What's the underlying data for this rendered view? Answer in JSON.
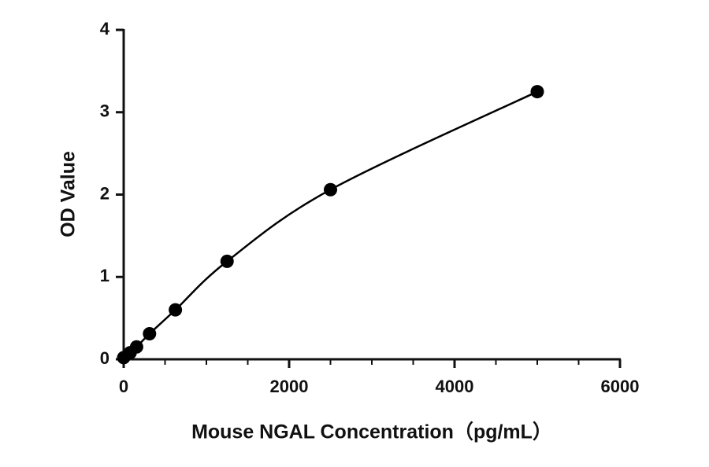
{
  "chart_data": {
    "type": "scatter",
    "x_label": "Mouse NGAL Concentration（pg/mL）",
    "y_label": "OD Value",
    "x": [
      0,
      78,
      156,
      312.5,
      625,
      1250,
      2500,
      5000
    ],
    "series": [
      {
        "color": "#000000",
        "values": [
          0.02,
          0.08,
          0.15,
          0.31,
          0.6,
          1.19,
          2.06,
          3.25
        ]
      }
    ],
    "xlim": [
      0,
      6000
    ],
    "xticks": [
      0,
      2000,
      4000,
      6000
    ],
    "xminorticks": [
      500,
      1000,
      1500,
      2500,
      3000,
      3500,
      4500,
      5000,
      5500
    ],
    "ylim": [
      0,
      4
    ],
    "yticks": [
      0,
      1,
      2,
      3,
      4
    ],
    "fit_curve": true
  }
}
